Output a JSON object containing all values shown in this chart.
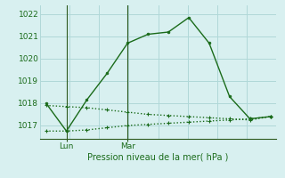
{
  "line1_x": [
    0,
    1,
    2,
    3,
    4,
    5,
    6,
    7,
    8,
    9,
    10,
    11
  ],
  "line1_y": [
    1018.0,
    1016.75,
    1018.15,
    1019.35,
    1020.7,
    1021.1,
    1021.2,
    1021.85,
    1020.7,
    1018.3,
    1017.3,
    1017.4
  ],
  "line2_x": [
    0,
    1,
    2,
    3,
    4,
    5,
    6,
    7,
    8,
    9,
    10,
    11
  ],
  "line2_y": [
    1017.9,
    1017.85,
    1017.8,
    1017.7,
    1017.6,
    1017.5,
    1017.45,
    1017.4,
    1017.35,
    1017.3,
    1017.25,
    1017.4
  ],
  "line3_x": [
    0,
    1,
    2,
    3,
    4,
    5,
    6,
    7,
    8,
    9,
    10,
    11
  ],
  "line3_y": [
    1016.75,
    1016.75,
    1016.8,
    1016.9,
    1017.0,
    1017.05,
    1017.1,
    1017.15,
    1017.2,
    1017.25,
    1017.3,
    1017.4
  ],
  "line_color": "#1a6b1a",
  "background_color": "#d8f0f0",
  "grid_color": "#b0d8d8",
  "xlabel": "Pression niveau de la mer( hPa )",
  "yticks": [
    1017,
    1018,
    1019,
    1020,
    1021,
    1022
  ],
  "xtick_positions": [
    1,
    4
  ],
  "xtick_labels": [
    "Lun",
    "Mar"
  ],
  "ylim": [
    1016.4,
    1022.4
  ],
  "xlim": [
    -0.3,
    11.3
  ],
  "lun_x": 1,
  "mar_x": 4,
  "title_color": "#1a6b1a",
  "axis_color": "#2d5a1e",
  "n_vgrid": 9
}
